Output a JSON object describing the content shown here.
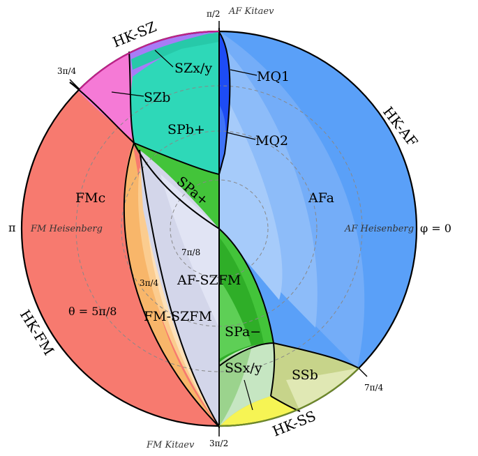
{
  "diagram": {
    "title_top": "AF Kitaev",
    "title_bottom": "FM Kitaev",
    "tick_top": "π/2",
    "tick_left": "π",
    "tick_right": "φ = 0",
    "tick_upper_left": "3π/4",
    "tick_lower_right": "7π/4",
    "tick_bottom": "3π/2",
    "ring_label_58": "θ = 5π/8",
    "ring_label_34": "3π/4",
    "ring_label_78": "7π/8",
    "left_point": "FM Heisenberg",
    "right_point": "AF Heisenberg",
    "arc_labels": {
      "hk_sz": "HK-SZ",
      "hk_af": "HK-AF",
      "hk_fm": "HK-FM",
      "hk_ss": "HK-SS"
    },
    "regions": {
      "sz_xy": "SZx/y",
      "sz_b": "SZb",
      "sp_b_plus": "SPb+",
      "mq1": "MQ1",
      "mq2": "MQ2",
      "sp_a_plus": "SPa+",
      "af_a": "AFa",
      "fm_c": "FMc",
      "af_sz_fm": "AF-SZFM",
      "fm_sz_fm": "FM-SZFM",
      "sp_a_minus": "SPa−",
      "ss_xy": "SSx/y",
      "ss_b": "SSb"
    },
    "colors": {
      "fm": "#f77a6f",
      "af": "#4f98f7",
      "sz_teal": "#2ed8b8",
      "sz_violet": "#a77cf7",
      "sz_pink": "#f57ad6",
      "mq": "#1d4cf5",
      "sp_green": "#43c43a",
      "fm_sz_orange": "#f8b66a",
      "af_sz_lavender": "#d3d6ea",
      "ss_olive": "#c7d48a",
      "ss_green": "#9bd38d",
      "yellow": "#f6f454",
      "hk_sz_arc": "#c0208a",
      "hk_ss_arc": "#6f8b2a"
    }
  }
}
